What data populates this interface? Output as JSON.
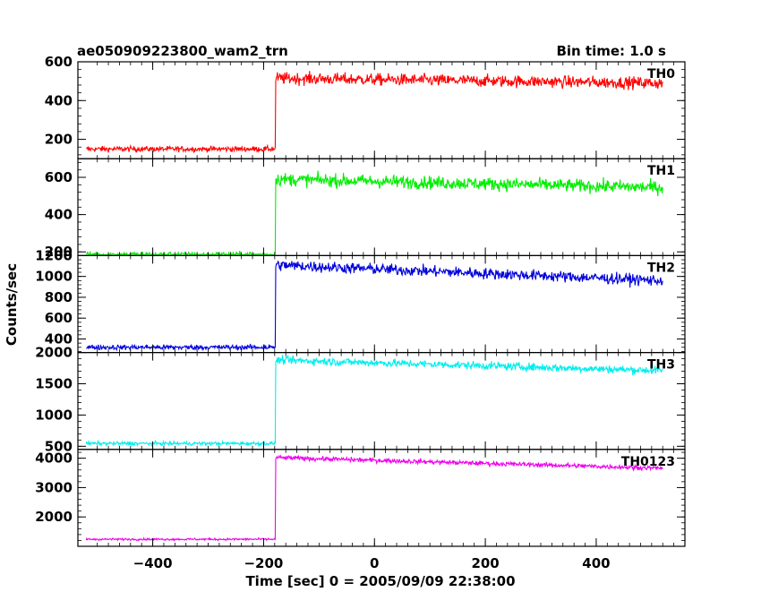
{
  "header": {
    "title": "ae050909223800_wam2_trn",
    "bin_time": "Bin time: 1.0 s"
  },
  "axes": {
    "xlabel": "Time [sec] 0 = 2005/09/09 22:38:00",
    "ylabel": "Counts/sec"
  },
  "chart_data": {
    "type": "line",
    "title": "ae050909223800_wam2_trn",
    "subtitle": "Bin time: 1.0 s",
    "xlabel": "Time [sec] 0 = 2005/09/09 22:38:00",
    "ylabel": "Counts/sec",
    "xlim": [
      -535,
      560
    ],
    "x_ticks": [
      -400,
      -200,
      0,
      200,
      400
    ],
    "x_tick_labels": [
      "−400",
      "−200",
      "0",
      "200",
      "400"
    ],
    "x_range": [
      -520,
      520
    ],
    "onset_x": -178,
    "grid": false,
    "legend": "none",
    "series": [
      {
        "name": "TH0",
        "color": "#ff0000",
        "ylim": [
          100,
          600
        ],
        "y_ticks": [
          200,
          400,
          600
        ],
        "pre_level": 150,
        "post_start": 515,
        "post_end": 490,
        "noise": 22
      },
      {
        "name": "TH1",
        "color": "#00ee00",
        "ylim": [
          180,
          700
        ],
        "y_ticks": [
          200,
          400,
          600
        ],
        "pre_level": 185,
        "post_start": 590,
        "post_end": 545,
        "noise": 25
      },
      {
        "name": "TH2",
        "color": "#0000dd",
        "ylim": [
          270,
          1200
        ],
        "y_ticks": [
          400,
          600,
          800,
          1000,
          1200
        ],
        "pre_level": 320,
        "post_start": 1110,
        "post_end": 960,
        "noise": 38
      },
      {
        "name": "TH3",
        "color": "#00eeee",
        "ylim": [
          450,
          2000
        ],
        "y_ticks": [
          500,
          1000,
          1500,
          2000
        ],
        "pre_level": 545,
        "post_start": 1880,
        "post_end": 1710,
        "noise": 45
      },
      {
        "name": "TH0123",
        "color": "#ee00ee",
        "ylim": [
          1000,
          4300
        ],
        "y_ticks": [
          2000,
          3000,
          4000
        ],
        "pre_level": 1240,
        "post_start": 4020,
        "post_end": 3660,
        "noise": 55
      }
    ]
  }
}
